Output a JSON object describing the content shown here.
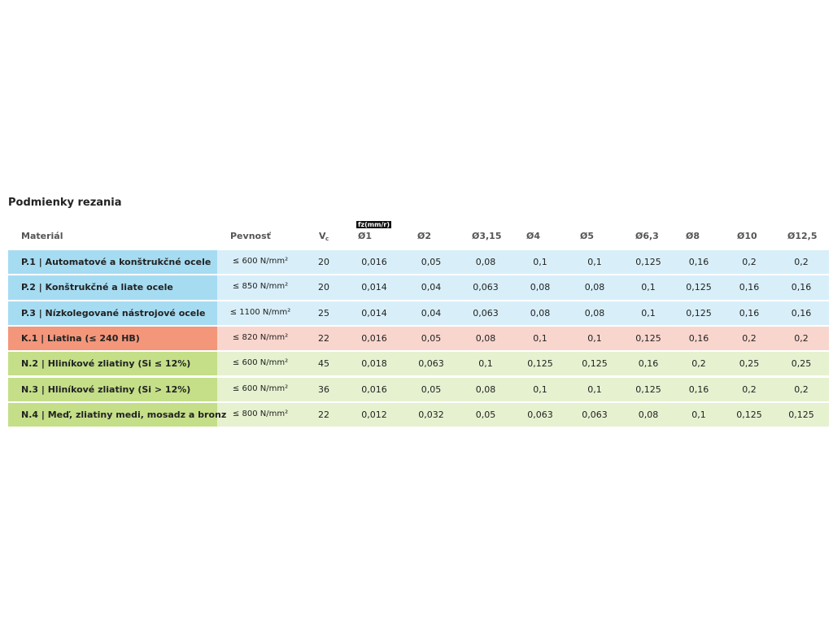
{
  "title": "Podmienky rezania",
  "table": {
    "header": {
      "material": "Materiál",
      "strength": "Pevnosť",
      "vc": "V",
      "vc_sub": "c",
      "feed_label": "fz(mm/r)",
      "diameters": [
        "Ø1",
        "Ø2",
        "Ø3,15",
        "Ø4",
        "Ø5",
        "Ø6,3",
        "Ø8",
        "Ø10",
        "Ø12,5"
      ]
    },
    "rows": [
      {
        "material": "P.1 | Automatové a konštrukčné ocele",
        "strength": "≤ 600 N/mm²",
        "vc": "20",
        "feeds": [
          "0,016",
          "0,05",
          "0,08",
          "0,1",
          "0,1",
          "0,125",
          "0,16",
          "0,2",
          "0,2"
        ],
        "colors": [
          "#a6dcf2",
          "#d8eff9"
        ]
      },
      {
        "material": "P.2 | Konštrukčné a liate ocele",
        "strength": "≤ 850 N/mm²",
        "vc": "20",
        "feeds": [
          "0,014",
          "0,04",
          "0,063",
          "0,08",
          "0,08",
          "0,1",
          "0,125",
          "0,16",
          "0,16"
        ],
        "colors": [
          "#a6dcf2",
          "#d8eff9"
        ]
      },
      {
        "material": "P.3 | Nízkolegované nástrojové ocele",
        "strength": "≤ 1100 N/mm²",
        "vc": "25",
        "feeds": [
          "0,014",
          "0,04",
          "0,063",
          "0,08",
          "0,08",
          "0,1",
          "0,125",
          "0,16",
          "0,16"
        ],
        "colors": [
          "#a6dcf2",
          "#d8eff9"
        ]
      },
      {
        "material": "K.1 | Liatina (≤ 240 HB)",
        "strength": "≤ 820 N/mm²",
        "vc": "22",
        "feeds": [
          "0,016",
          "0,05",
          "0,08",
          "0,1",
          "0,1",
          "0,125",
          "0,16",
          "0,2",
          "0,2"
        ],
        "colors": [
          "#f4967a",
          "#f9d6cd"
        ]
      },
      {
        "material": "N.2 | Hliníkové zliatiny (Si ≤ 12%)",
        "strength": "≤ 600 N/mm²",
        "vc": "45",
        "feeds": [
          "0,018",
          "0,063",
          "0,1",
          "0,125",
          "0,125",
          "0,16",
          "0,2",
          "0,25",
          "0,25"
        ],
        "colors": [
          "#c4df88",
          "#e6f1d0"
        ]
      },
      {
        "material": "N.3 | Hliníkové zliatiny (Si > 12%)",
        "strength": "≤ 600 N/mm²",
        "vc": "36",
        "feeds": [
          "0,016",
          "0,05",
          "0,08",
          "0,1",
          "0,1",
          "0,125",
          "0,16",
          "0,2",
          "0,2"
        ],
        "colors": [
          "#c4df88",
          "#e6f1d0"
        ]
      },
      {
        "material": "N.4 | Meď, zliatiny medi, mosadz a bronz",
        "strength": "≤ 800 N/mm²",
        "vc": "22",
        "feeds": [
          "0,012",
          "0,032",
          "0,05",
          "0,063",
          "0,063",
          "0,08",
          "0,1",
          "0,125",
          "0,125"
        ],
        "colors": [
          "#c4df88",
          "#e6f1d0"
        ]
      }
    ]
  }
}
